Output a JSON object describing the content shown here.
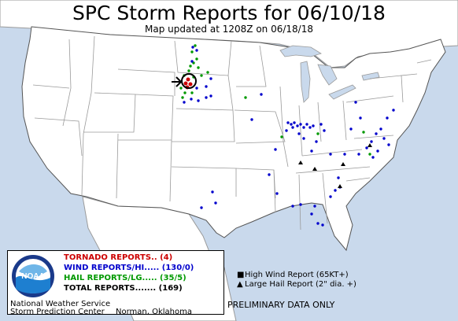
{
  "title": "SPC Storm Reports for 06/10/18",
  "subtitle": "Map updated at 1208Z on 06/18/18",
  "colors": {
    "ocean": "#c9d9ec",
    "land": "#ffffff",
    "border": "#9a9a9a",
    "tornado": "#cc0000",
    "wind": "#0000cc",
    "hail": "#009900"
  },
  "legend": {
    "tornado": "TORNADO REPORTS.. (4)",
    "wind": "WIND REPORTS/HI..... (130/0)",
    "hail": "HAIL REPORTS/LG..... (35/5)",
    "total": "TOTAL REPORTS....... (169)",
    "org1": "National Weather Service",
    "org2": "Storm Prediction Center",
    "location": "Norman, Oklahoma",
    "logo_icon": "noaa-logo",
    "logo_text": "NOAA"
  },
  "symbol_key": {
    "high_wind": "High Wind Report (65KT+)",
    "large_hail": "Large Hail Report (2\" dia. +)"
  },
  "note": "PRELIMINARY DATA ONLY"
}
